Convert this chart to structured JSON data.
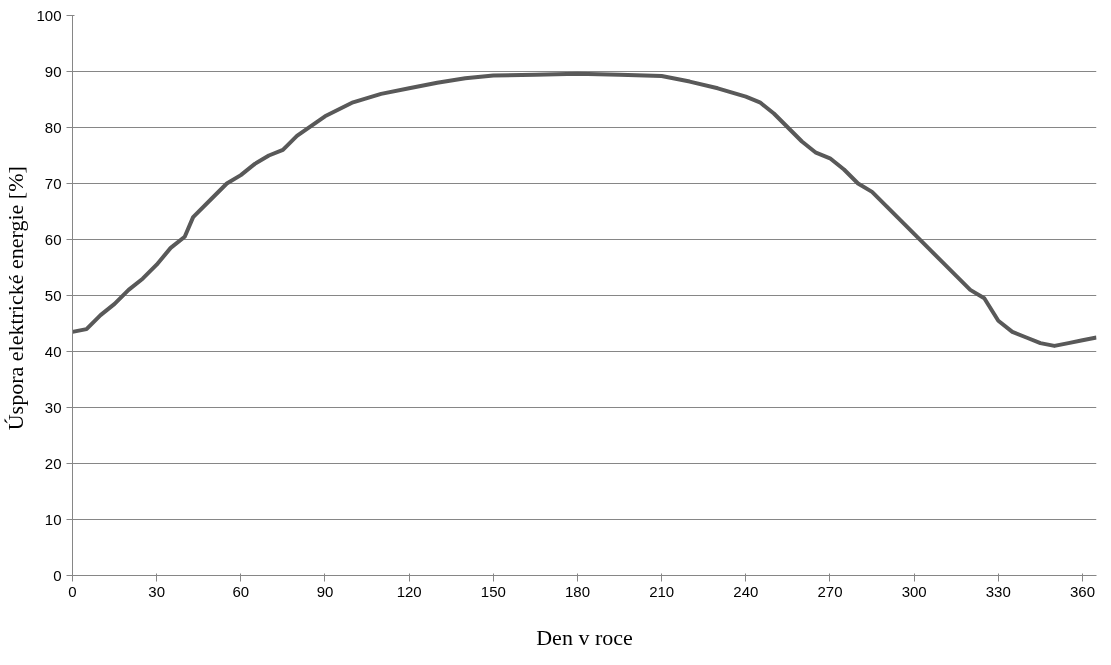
{
  "chart_data": {
    "type": "line",
    "xlabel": "Den v roce",
    "ylabel": "Úspora elektrické energie  [%]",
    "x": [
      0,
      5,
      10,
      15,
      20,
      25,
      30,
      35,
      40,
      43,
      50,
      55,
      60,
      65,
      70,
      75,
      80,
      90,
      100,
      110,
      120,
      130,
      140,
      150,
      165,
      180,
      195,
      210,
      220,
      230,
      240,
      245,
      250,
      255,
      260,
      265,
      270,
      275,
      280,
      285,
      290,
      295,
      300,
      305,
      310,
      315,
      320,
      325,
      330,
      335,
      340,
      345,
      350,
      355,
      360,
      365
    ],
    "series": [
      {
        "color": "#595959",
        "values": [
          43.5,
          44,
          46.5,
          48.5,
          51,
          53,
          55.5,
          58.5,
          60.5,
          64,
          67.5,
          70,
          71.5,
          73.5,
          75,
          76,
          78.5,
          82,
          84.5,
          86,
          87,
          88,
          88.8,
          89.3,
          89.4,
          89.6,
          89.4,
          89.2,
          88.2,
          87,
          85.5,
          84.5,
          82.5,
          80,
          77.5,
          75.5,
          74.5,
          72.5,
          70,
          68.5,
          66,
          63.5,
          61,
          58.5,
          56,
          53.5,
          51,
          49.5,
          45.5,
          43.5,
          42.5,
          41.5,
          41,
          41.5,
          42,
          42.5
        ]
      }
    ],
    "xlim": [
      0,
      365
    ],
    "xticks": [
      0,
      30,
      60,
      90,
      120,
      150,
      180,
      210,
      240,
      270,
      300,
      330,
      360
    ],
    "ylim": [
      0,
      100
    ],
    "yticks": [
      0,
      10,
      20,
      30,
      40,
      50,
      60,
      70,
      80,
      90,
      100
    ],
    "grid": "y",
    "marker": "none",
    "line_style": "solid"
  }
}
